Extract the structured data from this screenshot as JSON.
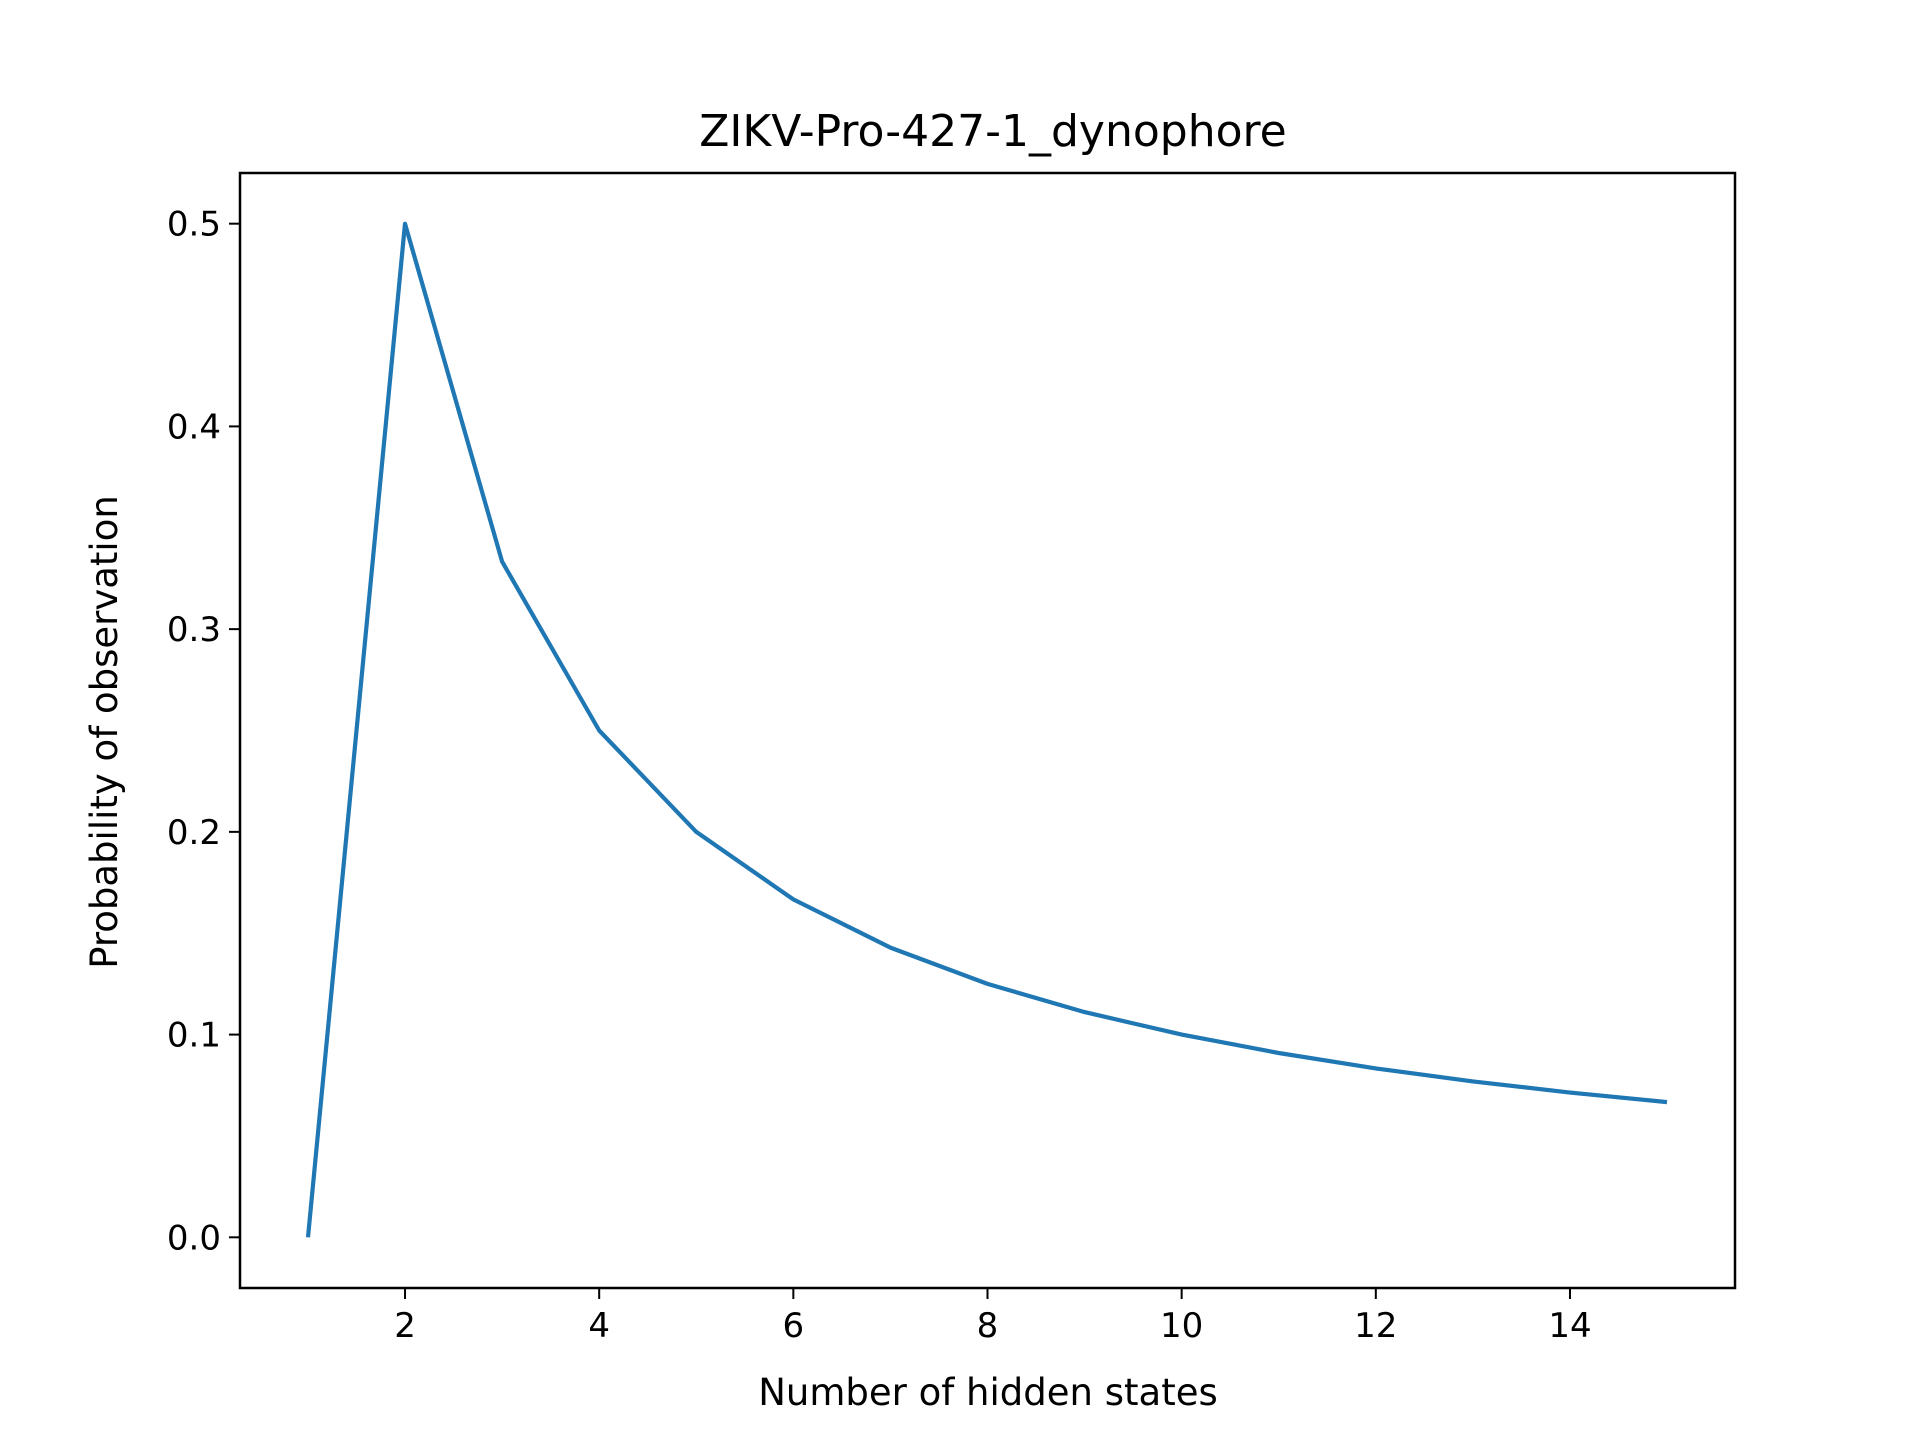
{
  "chart_data": {
    "type": "line",
    "title": "ZIKV-Pro-427-1_dynophore",
    "xlabel": "Number of hidden states",
    "ylabel": "Probability of observation",
    "x": [
      1,
      2,
      3,
      4,
      5,
      6,
      7,
      8,
      9,
      10,
      11,
      12,
      13,
      14,
      15
    ],
    "series": [
      {
        "values": [
          0.0,
          0.5,
          0.3333,
          0.25,
          0.2,
          0.1667,
          0.1429,
          0.125,
          0.1111,
          0.1,
          0.0909,
          0.0833,
          0.0769,
          0.0714,
          0.0667
        ]
      }
    ],
    "xlim": [
      0.3,
      15.7
    ],
    "ylim": [
      -0.025,
      0.525
    ],
    "xticks": [
      2,
      4,
      6,
      8,
      10,
      12,
      14
    ],
    "xtick_labels": [
      "2",
      "4",
      "6",
      "8",
      "10",
      "12",
      "14"
    ],
    "yticks": [
      0.0,
      0.1,
      0.2,
      0.3,
      0.4,
      0.5
    ],
    "ytick_labels": [
      "0.0",
      "0.1",
      "0.2",
      "0.3",
      "0.4",
      "0.5"
    ],
    "grid": false,
    "line_color": "#1f77b4"
  }
}
